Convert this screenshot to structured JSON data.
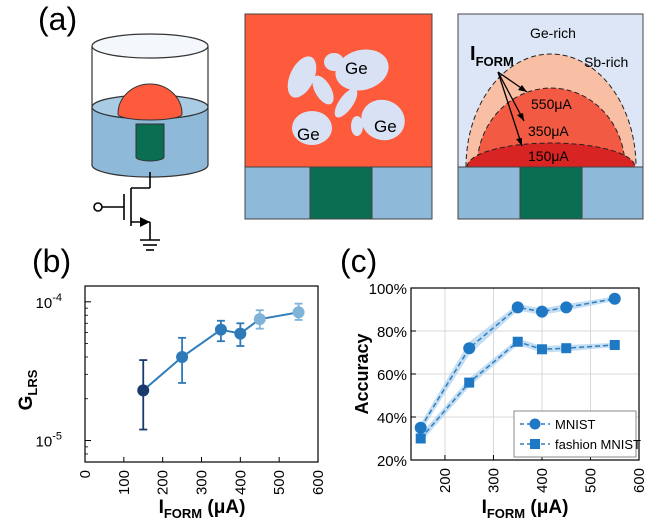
{
  "panel_labels": {
    "a": "(a)",
    "b": "(b)",
    "c": "(c)"
  },
  "colors": {
    "pcm_red": "#fe5b3c",
    "blue_electrode": "#8eb9d8",
    "green_heater": "#0a6e52",
    "amorphous_blob": "#d8e2f4",
    "sb_background": "#dde6f6",
    "dome_550": "#f8bfa4",
    "dome_350": "#f25a44",
    "dome_150": "#d92424",
    "series_dark": "#1a3a6e",
    "series_mid": "#2e7ab8",
    "series_light": "#7fb4d8",
    "line_blue": "#2f7dbb",
    "marker_blue": "#1f78c4",
    "band_blue": "#a9d0ef",
    "grid": "#d8d8d8",
    "axis_black": "#000000"
  },
  "panel_a": {
    "ge_labels": [
      "Ge",
      "Ge",
      "Ge"
    ],
    "ge_rich_label": "Ge-rich",
    "sb_rich_label": "Sb-rich",
    "iform_main": "I",
    "iform_sub": "FORM",
    "dome_labels": [
      "550μA",
      "350μA",
      "150μA"
    ]
  },
  "chart_data": [
    {
      "type": "line",
      "panel": "(b)",
      "title": "",
      "xlabel_main": "I",
      "xlabel_sub": "FORM",
      "xlabel_unit": " (μA)",
      "ylabel_main": "G",
      "ylabel_sub": "LRS",
      "xlim": [
        0,
        600
      ],
      "ylim": [
        7e-06,
        0.00013
      ],
      "yscale": "log",
      "xticks": [
        "0",
        "100",
        "200",
        "300",
        "400",
        "500",
        "600"
      ],
      "yticks": [
        {
          "base": "10",
          "exp": "-5"
        },
        {
          "base": "10",
          "exp": "-4"
        }
      ],
      "points": [
        {
          "x": 150,
          "y": 2.3e-05,
          "lo": 1.2e-05,
          "hi": 3.8e-05,
          "shade": "dark"
        },
        {
          "x": 250,
          "y": 4e-05,
          "lo": 2.6e-05,
          "hi": 5.5e-05,
          "shade": "mid"
        },
        {
          "x": 350,
          "y": 6.3e-05,
          "lo": 5.2e-05,
          "hi": 7.3e-05,
          "shade": "mid"
        },
        {
          "x": 400,
          "y": 5.9e-05,
          "lo": 4.8e-05,
          "hi": 7e-05,
          "shade": "mid"
        },
        {
          "x": 450,
          "y": 7.5e-05,
          "lo": 6.4e-05,
          "hi": 8.7e-05,
          "shade": "light"
        },
        {
          "x": 550,
          "y": 8.4e-05,
          "lo": 7.4e-05,
          "hi": 9.7e-05,
          "shade": "light"
        }
      ],
      "grid": false
    },
    {
      "type": "line",
      "panel": "(c)",
      "title": "",
      "xlabel_main": "I",
      "xlabel_sub": "FORM",
      "xlabel_unit": " (μA)",
      "ylabel": "Accuracy",
      "xlim": [
        130,
        600
      ],
      "ylim": [
        20,
        100
      ],
      "xticks": [
        "200",
        "300",
        "400",
        "500",
        "600"
      ],
      "yticks": [
        "20%",
        "40%",
        "60%",
        "80%",
        "100%"
      ],
      "grid": true,
      "legend_position": "bottom-right",
      "series": [
        {
          "name": "MNIST",
          "marker": "circle",
          "x": [
            150,
            250,
            350,
            400,
            450,
            550
          ],
          "values": [
            35,
            72,
            91,
            89,
            91,
            95
          ],
          "band": [
            2,
            3,
            1.5,
            1.5,
            1.5,
            1
          ]
        },
        {
          "name": "fashion MNIST",
          "marker": "square",
          "x": [
            150,
            250,
            350,
            400,
            450,
            550
          ],
          "values": [
            30,
            56,
            75,
            71.5,
            72,
            73.5
          ],
          "band": [
            2,
            2,
            1.5,
            1.5,
            1.5,
            1
          ]
        }
      ]
    }
  ]
}
